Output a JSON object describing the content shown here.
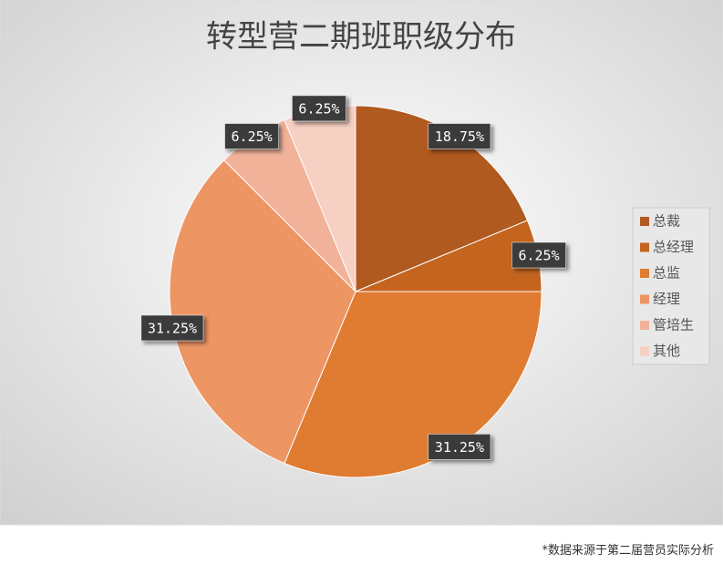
{
  "chart_data": {
    "type": "pie",
    "title": "转型营二期班职级分布",
    "categories": [
      "总裁",
      "总经理",
      "总监",
      "经理",
      "管培生",
      "其他"
    ],
    "values": [
      18.75,
      6.25,
      31.25,
      31.25,
      6.25,
      6.25
    ],
    "value_labels": [
      "18.75%",
      "6.25%",
      "31.25%",
      "31.25%",
      "6.25%",
      "6.25%"
    ],
    "colors": [
      "#b05a20",
      "#c4641f",
      "#e07b32",
      "#ee9564",
      "#f2b29a",
      "#f6d0c2"
    ],
    "legend": "right",
    "footnote": "*数据来源于第二届营员实际分析"
  }
}
